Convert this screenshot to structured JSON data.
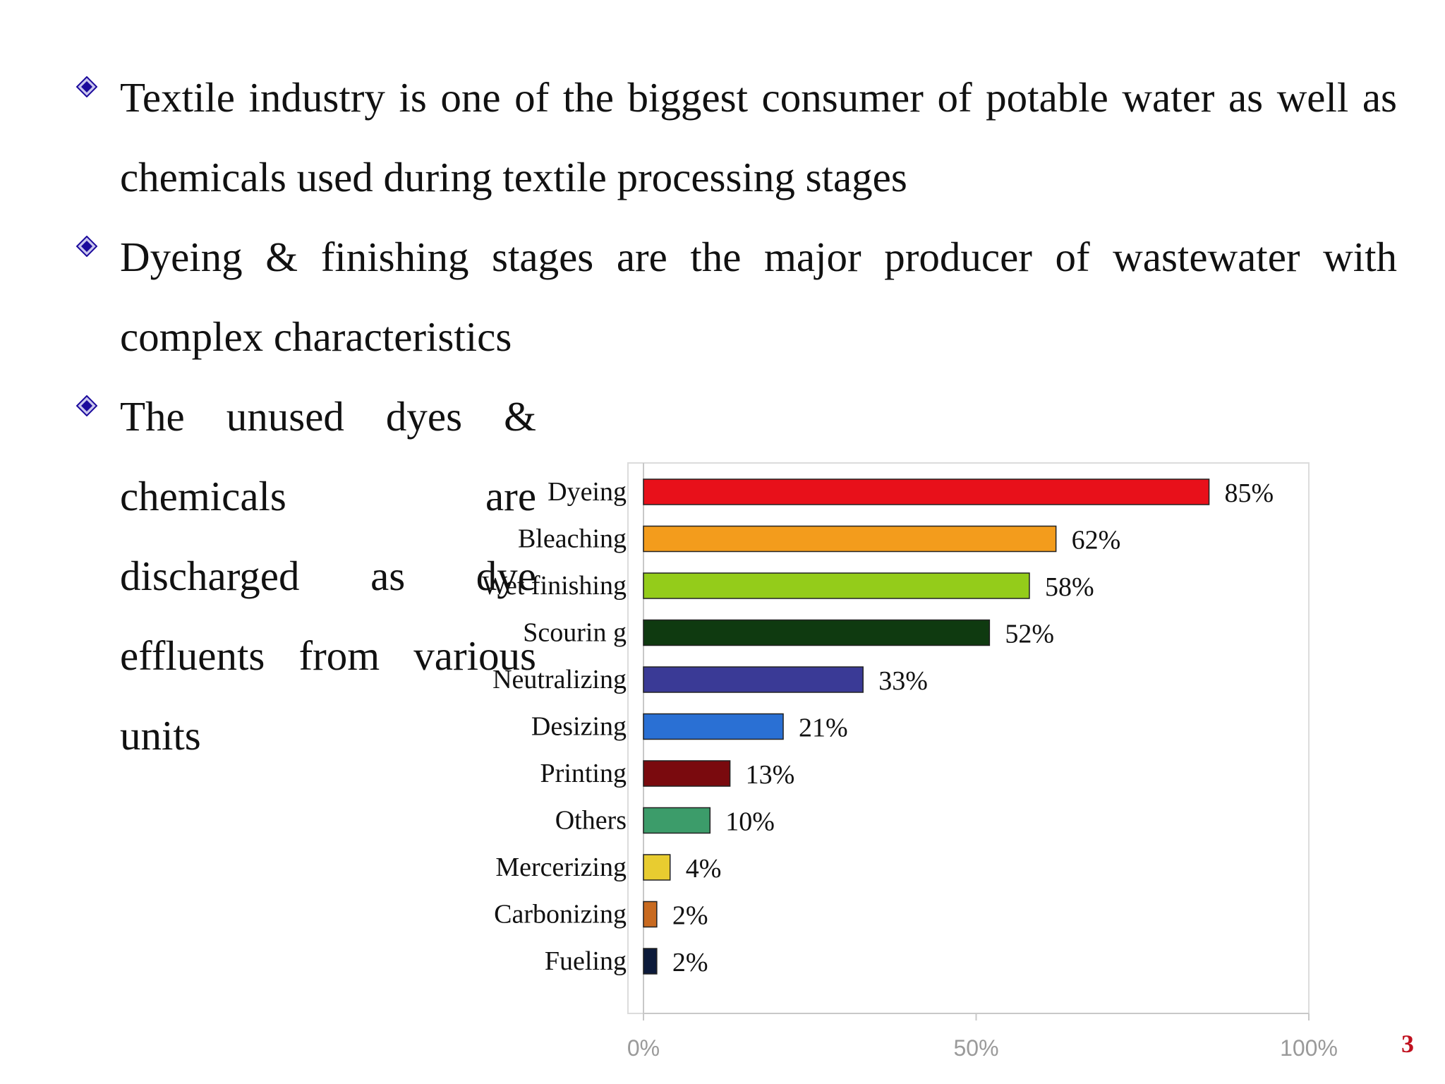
{
  "slide": {
    "bullets": [
      {
        "text": "Textile industry is one of the biggest consumer of potable water as well as chemicals used during textile processing stages"
      },
      {
        "text": "Dyeing & finishing stages are the major producer of wastewater with complex characteristics"
      },
      {
        "text": "The unused dyes & chemicals are discharged as dye effluents from various units"
      }
    ],
    "bullet_color": "#1b0a9c",
    "page_number": "3"
  },
  "chart_data": {
    "type": "bar",
    "orientation": "horizontal",
    "categories": [
      "Dyeing",
      "Bleaching",
      "Wet finishing",
      "Scourin g",
      "Neutralizing",
      "Desizing",
      "Printing",
      "Others",
      "Mercerizing",
      "Carbonizing",
      "Fueling"
    ],
    "values": [
      85,
      62,
      58,
      52,
      33,
      21,
      13,
      10,
      4,
      2,
      2
    ],
    "value_labels": [
      "85%",
      "62%",
      "58%",
      "52%",
      "33%",
      "21%",
      "13%",
      "10%",
      "4%",
      "2%",
      "2%"
    ],
    "colors": [
      "#e8101a",
      "#f39c1c",
      "#94cc1a",
      "#0f3a10",
      "#3a3a96",
      "#2a70d4",
      "#7a0a0e",
      "#3c9c6a",
      "#e8cc30",
      "#c86a20",
      "#0c1a3a"
    ],
    "xlim": [
      0,
      100
    ],
    "xticks": [
      "0%",
      "50%",
      "100%"
    ],
    "grid": false,
    "legend": "none"
  }
}
